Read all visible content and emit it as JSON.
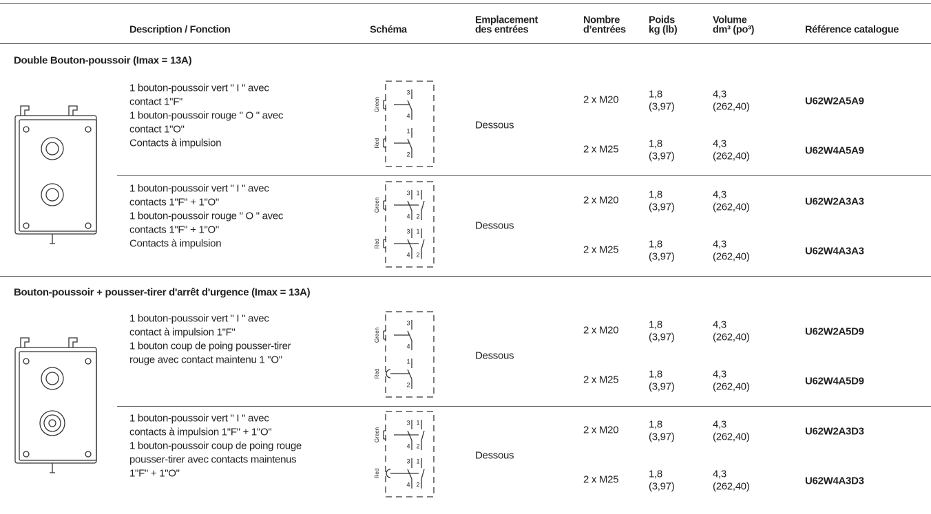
{
  "header": {
    "columns": [
      [
        "Description / Fonction"
      ],
      [
        "Schéma"
      ],
      [
        "Emplacement",
        "des entrées"
      ],
      [
        "Nombre",
        "d’entrées"
      ],
      [
        "Poids",
        "kg (lb)"
      ],
      [
        "Volume",
        "dm³ (po³)"
      ],
      [
        "Référence catalogue"
      ]
    ]
  },
  "sections": [
    {
      "title": "Double Bouton-poussoir (Imax = 13A)",
      "groups": [
        {
          "description": [
            "1 bouton-poussoir vert \" I \" avec",
            "contact 1\"F\"",
            "1 bouton-poussoir rouge \" O \" avec",
            "contact 1\"O\"",
            "Contacts à impulsion"
          ],
          "schema": [
            {
              "label": "Green",
              "contacts": [
                [
                  "3",
                  "4"
                ]
              ]
            },
            {
              "label": "Red",
              "contacts": [
                [
                  "1",
                  "2"
                ]
              ]
            }
          ],
          "location": "Dessous",
          "rows": [
            {
              "entries": "2 x M20",
              "weight": [
                "1,8",
                "(3,97)"
              ],
              "volume": [
                "4,3",
                "(262,40)"
              ],
              "reference": "U62W2A5A9"
            },
            {
              "entries": "2 x M25",
              "weight": [
                "1,8",
                "(3,97)"
              ],
              "volume": [
                "4,3",
                "(262,40)"
              ],
              "reference": "U62W4A5A9"
            }
          ]
        },
        {
          "description": [
            "1 bouton-poussoir vert \" I \" avec",
            "contacts 1\"F\" + 1\"O\"",
            "1 bouton-poussoir rouge \" O \" avec",
            "contacts 1\"F\" + 1\"O\"",
            "Contacts à impulsion"
          ],
          "schema": [
            {
              "label": "Green",
              "contacts": [
                [
                  "3",
                  "4"
                ],
                [
                  "1",
                  "2"
                ]
              ]
            },
            {
              "label": "Red",
              "contacts": [
                [
                  "3",
                  "4"
                ],
                [
                  "1",
                  "2"
                ]
              ]
            }
          ],
          "location": "Dessous",
          "rows": [
            {
              "entries": "2 x M20",
              "weight": [
                "1,8",
                "(3,97)"
              ],
              "volume": [
                "4,3",
                "(262,40)"
              ],
              "reference": "U62W2A3A3"
            },
            {
              "entries": "2 x M25",
              "weight": [
                "1,8",
                "(3,97)"
              ],
              "volume": [
                "4,3",
                "(262,40)"
              ],
              "reference": "U62W4A3A3"
            }
          ]
        }
      ]
    },
    {
      "title": "Bouton-poussoir + pousser-tirer d'arrêt d'urgence (Imax = 13A)",
      "groups": [
        {
          "description": [
            "1 bouton-poussoir vert \" I \" avec",
            "contact à impulsion 1\"F\"",
            "1 bouton coup de poing pousser-tirer",
            "rouge avec contact maintenu 1 \"O\""
          ],
          "schema": [
            {
              "label": "Green",
              "contacts": [
                [
                  "3",
                  "4"
                ]
              ]
            },
            {
              "label": "Red",
              "contacts": [
                [
                  "1",
                  "2"
                ]
              ]
            }
          ],
          "location": "Dessous",
          "rows": [
            {
              "entries": "2 x M20",
              "weight": [
                "1,8",
                "(3,97)"
              ],
              "volume": [
                "4,3",
                "(262,40)"
              ],
              "reference": "U62W2A5D9"
            },
            {
              "entries": "2 x M25",
              "weight": [
                "1,8",
                "(3,97)"
              ],
              "volume": [
                "4,3",
                "(262,40)"
              ],
              "reference": "U62W4A5D9"
            }
          ]
        },
        {
          "description": [
            "1 bouton-poussoir vert \" I \" avec",
            "contacts à impulsion 1\"F\" + 1\"O\"",
            "1 bouton-poussoir coup de poing rouge",
            "pousser-tirer avec contacts maintenus",
            "1\"F\" + 1\"O\""
          ],
          "schema": [
            {
              "label": "Green",
              "contacts": [
                [
                  "3",
                  "4"
                ],
                [
                  "1",
                  "2"
                ]
              ]
            },
            {
              "label": "Red",
              "contacts": [
                [
                  "3",
                  "4"
                ],
                [
                  "1",
                  "2"
                ]
              ]
            }
          ],
          "location": "Dessous",
          "rows": [
            {
              "entries": "2 x M20",
              "weight": [
                "1,8",
                "(3,97)"
              ],
              "volume": [
                "4,3",
                "(262,40)"
              ],
              "reference": "U62W2A3D3"
            },
            {
              "entries": "2 x M25",
              "weight": [
                "1,8",
                "(3,97)"
              ],
              "volume": [
                "4,3",
                "(262,40)"
              ],
              "reference": "U62W4A3D3"
            }
          ]
        }
      ]
    }
  ]
}
